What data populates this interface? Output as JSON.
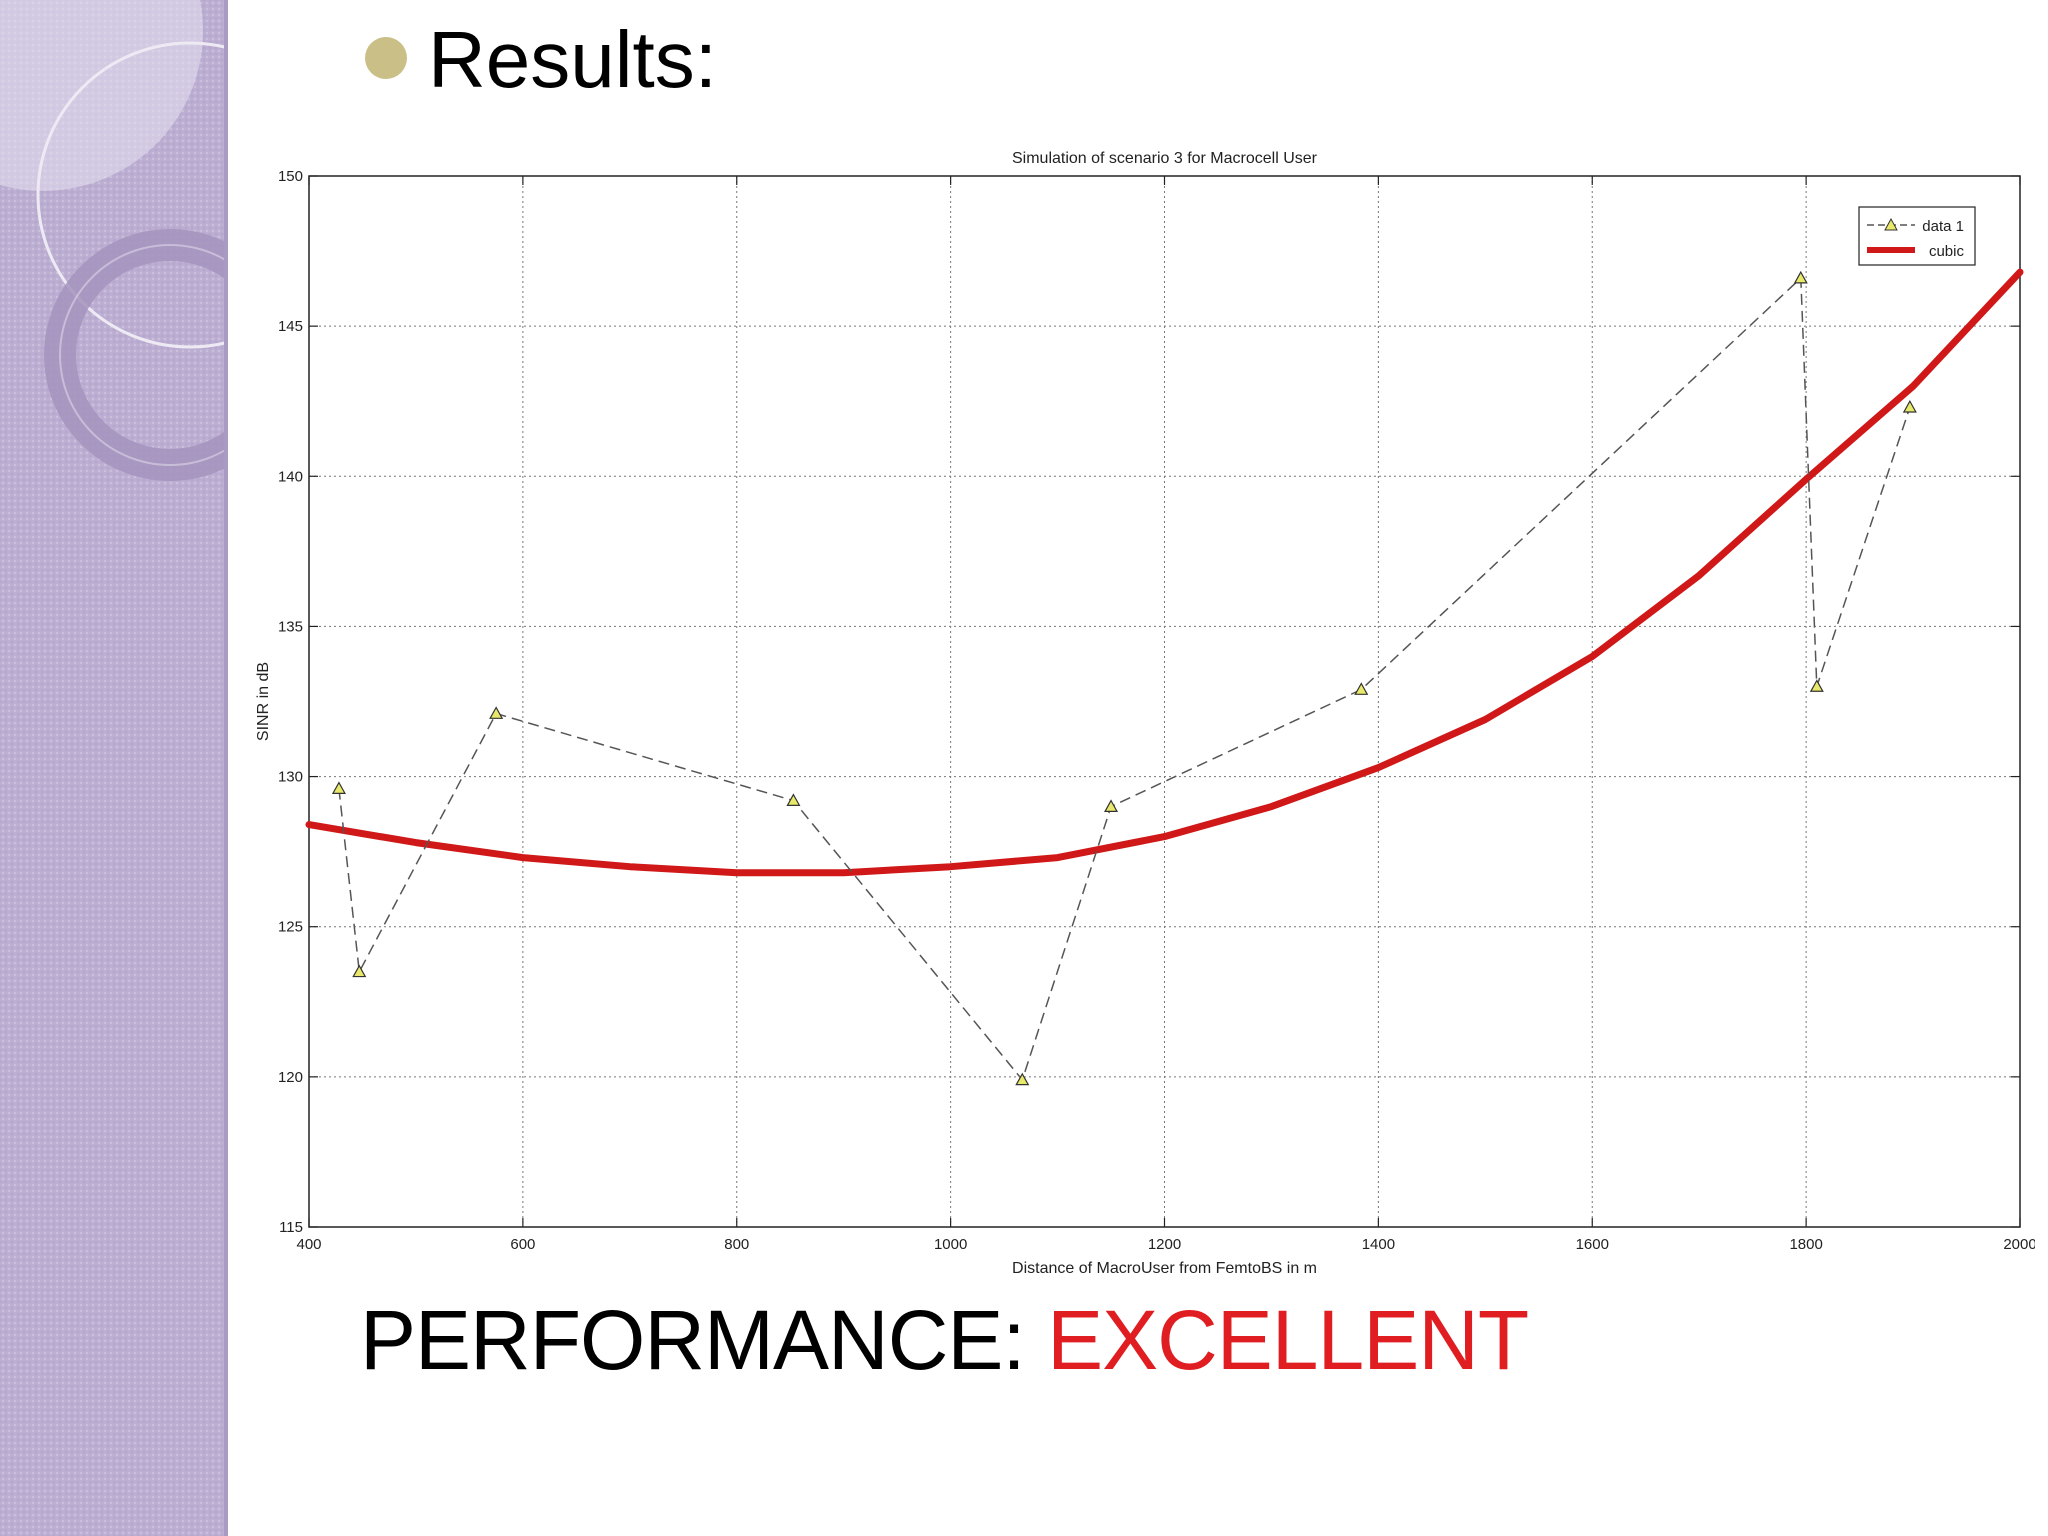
{
  "slide": {
    "heading": "Results:",
    "footer_label": "PERFORMANCE: ",
    "footer_value": "EXCELLENT",
    "colors": {
      "sidebar": "#bcaed2",
      "bullet": "#c9bf87",
      "footer_value": "#e01e22"
    }
  },
  "chart_data": {
    "type": "line",
    "title": "Simulation of scenario 3 for Macrocell User",
    "xlabel": "Distance of MacroUser from FemtoBS in m",
    "ylabel": "SINR in dB",
    "xlim": [
      400,
      2000
    ],
    "ylim": [
      115,
      150
    ],
    "xticks": [
      400,
      600,
      800,
      1000,
      1200,
      1400,
      1600,
      1800,
      2000
    ],
    "yticks": [
      115,
      120,
      125,
      130,
      135,
      140,
      145,
      150
    ],
    "grid": true,
    "legend_position": "top-right",
    "series": [
      {
        "name": "data 1",
        "style": "dashed line with triangle markers",
        "color": "#555555",
        "marker_color": "#e8e86a",
        "points": [
          [
            428,
            129.6
          ],
          [
            447,
            123.5
          ],
          [
            575,
            132.1
          ],
          [
            853,
            129.2
          ],
          [
            1067,
            119.9
          ],
          [
            1150,
            129.0
          ],
          [
            1384,
            132.9
          ],
          [
            1795,
            146.6
          ],
          [
            1810,
            133.0
          ],
          [
            1897,
            142.3
          ]
        ]
      },
      {
        "name": "cubic",
        "style": "thick solid line",
        "color": "#d01818",
        "points": [
          [
            400,
            128.4
          ],
          [
            500,
            127.8
          ],
          [
            600,
            127.3
          ],
          [
            700,
            127.0
          ],
          [
            800,
            126.8
          ],
          [
            900,
            126.8
          ],
          [
            1000,
            127.0
          ],
          [
            1100,
            127.3
          ],
          [
            1200,
            128.0
          ],
          [
            1300,
            129.0
          ],
          [
            1400,
            130.3
          ],
          [
            1500,
            131.9
          ],
          [
            1600,
            134.0
          ],
          [
            1700,
            136.7
          ],
          [
            1800,
            139.9
          ],
          [
            1900,
            143.0
          ],
          [
            2000,
            146.8
          ]
        ]
      }
    ]
  }
}
